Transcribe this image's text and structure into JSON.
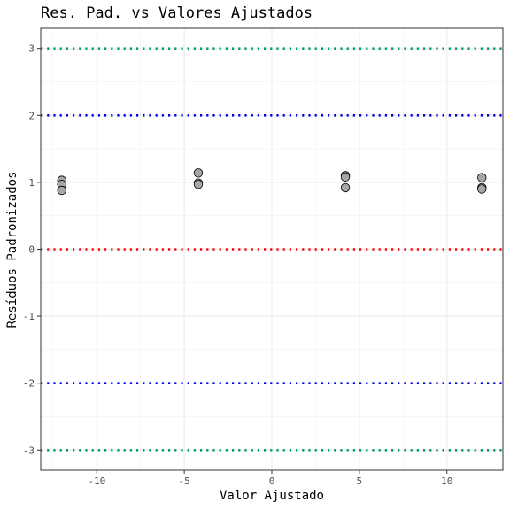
{
  "chart_data": {
    "type": "scatter",
    "title": "Res. Pad. vs Valores Ajustados",
    "xlabel": "Valor Ajustado",
    "ylabel": "Resíduos Padronizados",
    "xlim": [
      -13.2,
      13.2
    ],
    "ylim": [
      -3.3,
      3.3
    ],
    "x_ticks": [
      -10,
      -5,
      0,
      5,
      10
    ],
    "y_ticks": [
      -3,
      -2,
      -1,
      0,
      1,
      2,
      3
    ],
    "x_tick_labels": [
      "-10",
      "-5",
      "0",
      "5",
      "10"
    ],
    "y_tick_labels": [
      "-3",
      "-2",
      "-1",
      "0",
      "1",
      "2",
      "3"
    ],
    "grid": true,
    "reference_lines": [
      {
        "y": 3,
        "color": "#009E73",
        "style": "dotted"
      },
      {
        "y": 2,
        "color": "#0000EE",
        "style": "dotted"
      },
      {
        "y": 0,
        "color": "#FF0000",
        "style": "dotted"
      },
      {
        "y": -2,
        "color": "#0000EE",
        "style": "dotted"
      },
      {
        "y": -3,
        "color": "#009E73",
        "style": "dotted"
      }
    ],
    "points": [
      {
        "x": -12.0,
        "y": 1.03
      },
      {
        "x": -12.0,
        "y": 0.97
      },
      {
        "x": -12.0,
        "y": 0.88
      },
      {
        "x": -4.2,
        "y": 1.14
      },
      {
        "x": -4.2,
        "y": 0.99
      },
      {
        "x": -4.2,
        "y": 0.97
      },
      {
        "x": 4.2,
        "y": 1.1
      },
      {
        "x": 4.2,
        "y": 1.08
      },
      {
        "x": 4.2,
        "y": 0.92
      },
      {
        "x": 12.0,
        "y": 1.07
      },
      {
        "x": 12.0,
        "y": 0.92
      },
      {
        "x": 12.0,
        "y": 0.9
      }
    ],
    "point_fill": "#A6A6A6",
    "point_stroke": "#000000"
  }
}
